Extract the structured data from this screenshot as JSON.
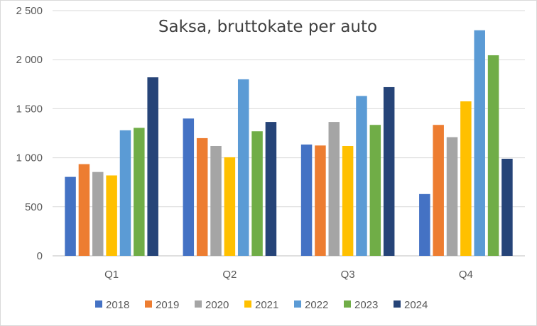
{
  "chart_data": {
    "type": "bar",
    "title": "Saksa, bruttokate per auto",
    "xlabel": "",
    "ylabel": "",
    "ylim": [
      0,
      2500
    ],
    "yticks": [
      0,
      500,
      1000,
      1500,
      2000,
      2500
    ],
    "ytick_labels": [
      "0",
      "500",
      "1 000",
      "1 500",
      "2 000",
      "2 500"
    ],
    "categories": [
      "Q1",
      "Q2",
      "Q3",
      "Q4"
    ],
    "grid": true,
    "legend_position": "bottom",
    "series": [
      {
        "name": "2018",
        "color": "#4472c4",
        "values": [
          805,
          1400,
          1135,
          630
        ]
      },
      {
        "name": "2019",
        "color": "#ed7d31",
        "values": [
          935,
          1200,
          1125,
          1335
        ]
      },
      {
        "name": "2020",
        "color": "#a5a5a5",
        "values": [
          855,
          1120,
          1365,
          1210
        ]
      },
      {
        "name": "2021",
        "color": "#ffc000",
        "values": [
          820,
          1005,
          1120,
          1575
        ]
      },
      {
        "name": "2022",
        "color": "#5b9bd5",
        "values": [
          1280,
          1800,
          1630,
          2300
        ]
      },
      {
        "name": "2023",
        "color": "#70ad47",
        "values": [
          1305,
          1270,
          1335,
          2045
        ]
      },
      {
        "name": "2024",
        "color": "#264478",
        "values": [
          1820,
          1365,
          1720,
          990
        ]
      }
    ]
  }
}
